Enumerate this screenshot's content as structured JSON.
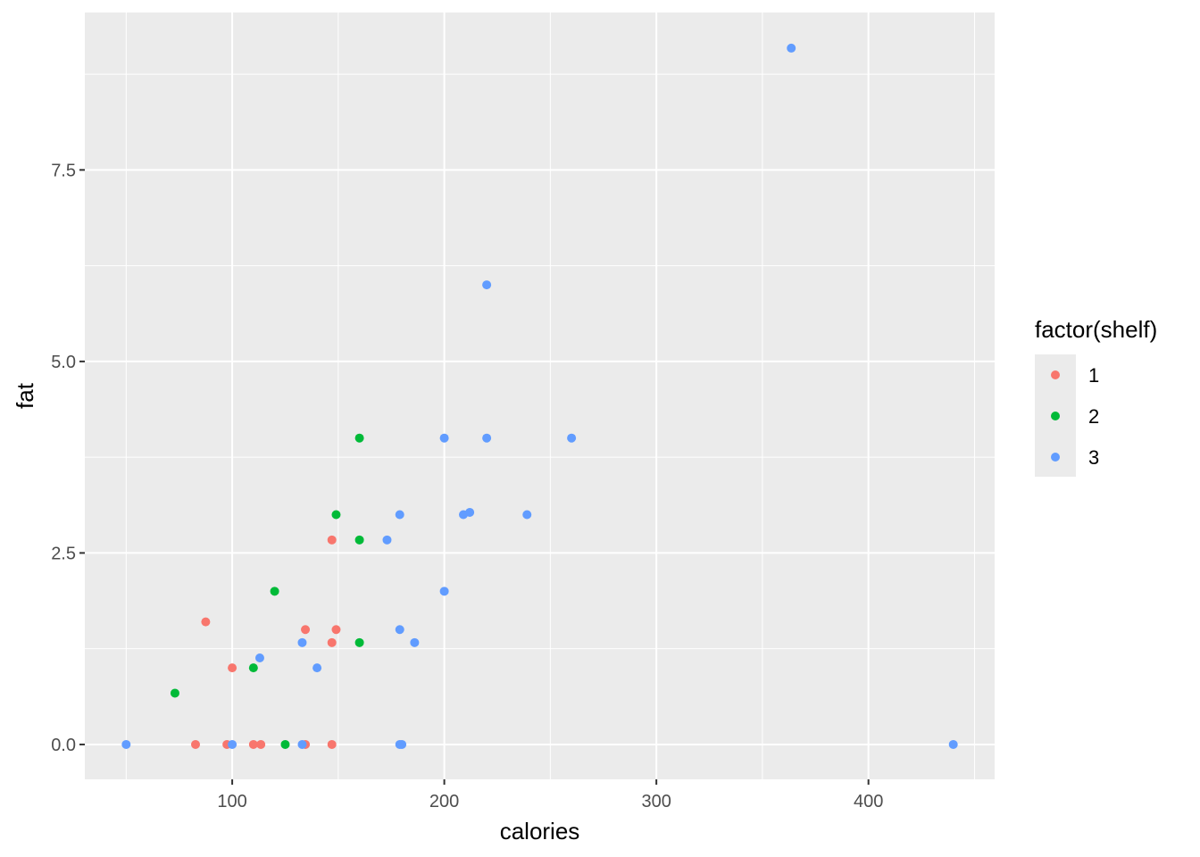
{
  "chart_data": {
    "type": "scatter",
    "title": "",
    "xlabel": "calories",
    "ylabel": "fat",
    "xlim": [
      30.5,
      459.5
    ],
    "ylim": [
      -0.455,
      9.555
    ],
    "x_ticks": [
      100,
      200,
      300,
      400
    ],
    "x_tick_labels": [
      "100",
      "200",
      "300",
      "400"
    ],
    "y_ticks": [
      0,
      2.5,
      5,
      7.5
    ],
    "y_tick_labels": [
      "0.0",
      "2.5",
      "5.0",
      "7.5"
    ],
    "grid": true,
    "legend": {
      "title": "factor(shelf)",
      "placement": "right"
    },
    "series": [
      {
        "name": "1",
        "color": "#F8766D",
        "points": [
          [
            87.5,
            1.6
          ],
          [
            100,
            1.0
          ],
          [
            82.7,
            0.0
          ],
          [
            97.5,
            0.0
          ],
          [
            110,
            0.0
          ],
          [
            113.5,
            0.0
          ],
          [
            134.5,
            1.5
          ],
          [
            147,
            2.67
          ],
          [
            149,
            1.5
          ],
          [
            147,
            1.33
          ],
          [
            134.5,
            0.0
          ],
          [
            147,
            0.0
          ]
        ]
      },
      {
        "name": "2",
        "color": "#00BA38",
        "points": [
          [
            73,
            0.67
          ],
          [
            110,
            1.0
          ],
          [
            120,
            2.0
          ],
          [
            125,
            0.0
          ],
          [
            149,
            3.0
          ],
          [
            160,
            4.0
          ],
          [
            160,
            2.67
          ],
          [
            160,
            1.33
          ]
        ]
      },
      {
        "name": "3",
        "color": "#619CFF",
        "points": [
          [
            50,
            0.0
          ],
          [
            100,
            0.0
          ],
          [
            113,
            1.13
          ],
          [
            133,
            1.33
          ],
          [
            133,
            0.0
          ],
          [
            140,
            1.0
          ],
          [
            173,
            2.67
          ],
          [
            179,
            3.0
          ],
          [
            179,
            1.5
          ],
          [
            179,
            0.0
          ],
          [
            180,
            0.0
          ],
          [
            186,
            1.33
          ],
          [
            200,
            4.0
          ],
          [
            200,
            2.0
          ],
          [
            209,
            3.0
          ],
          [
            212,
            3.03
          ],
          [
            220,
            6.0
          ],
          [
            220,
            4.0
          ],
          [
            239,
            3.0
          ],
          [
            260,
            4.0
          ],
          [
            363.6,
            9.09
          ],
          [
            440,
            0.0
          ]
        ]
      }
    ]
  }
}
